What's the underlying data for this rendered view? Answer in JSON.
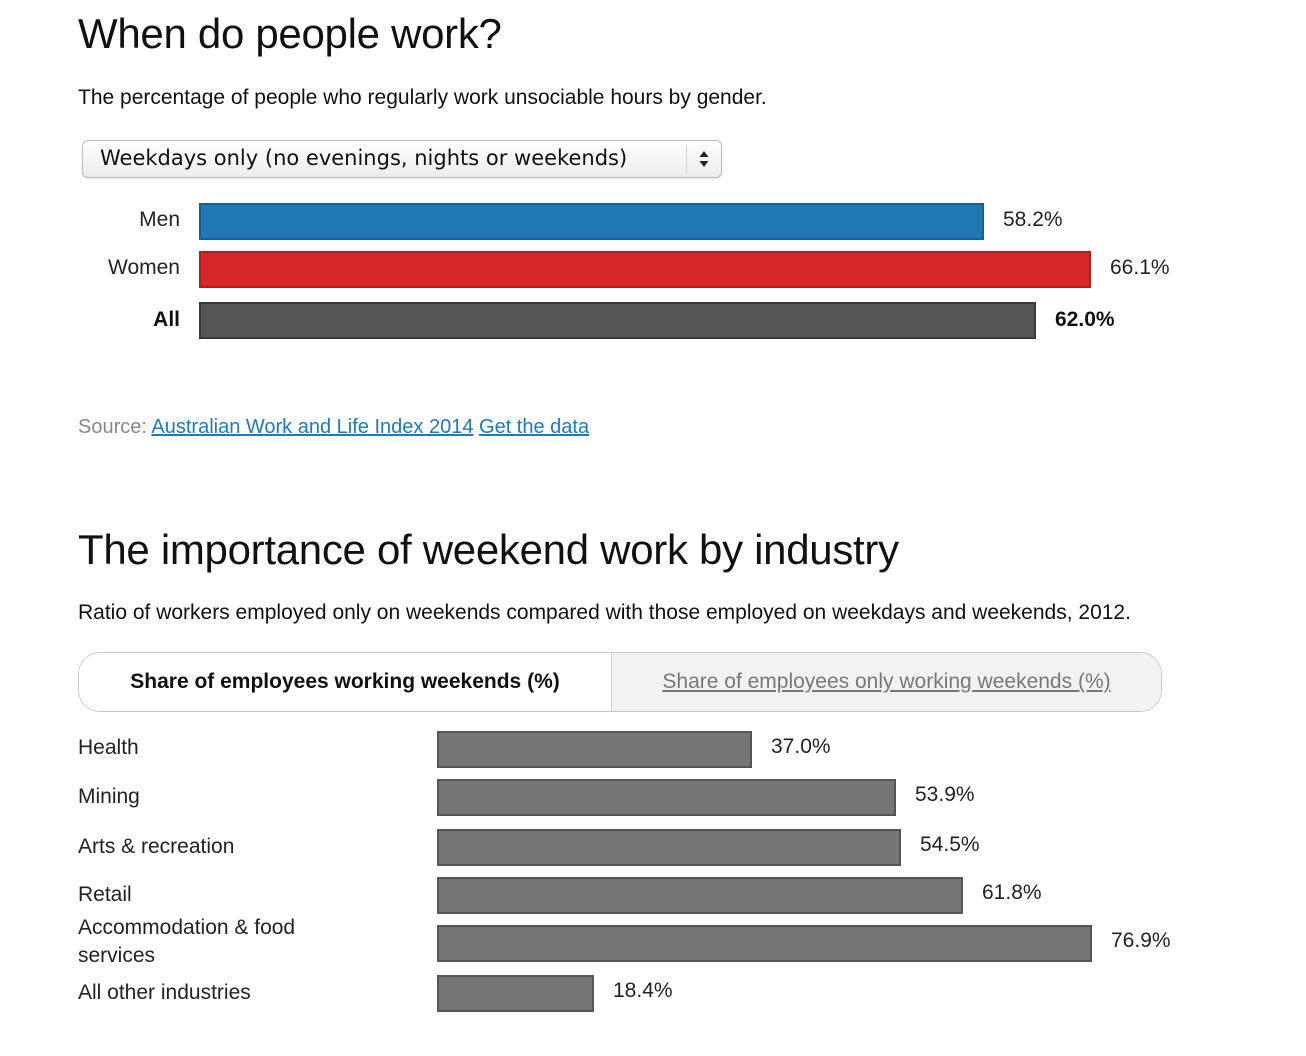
{
  "section1": {
    "title": "When do people work?",
    "subtitle": "The percentage of people who regularly work unsociable hours by gender.",
    "dropdown": {
      "selected": "Weekdays only (no evenings, nights or weekends)",
      "icon": "up-down-arrows-icon"
    },
    "source_label": "Source:",
    "source_link": "Australian Work and Life Index 2014",
    "data_link": "Get the data"
  },
  "section2": {
    "title": "The importance of weekend work by industry",
    "subtitle": "Ratio of workers employed only on weekends compared with those employed on weekdays and weekends, 2012.",
    "tabs": [
      {
        "label": "Share of employees working weekends (%)",
        "active": true
      },
      {
        "label": "Share of employees only working weekends (%)",
        "active": false
      }
    ]
  },
  "colors": {
    "men": "#1f77b4",
    "women": "#d62728",
    "all": "#555555",
    "industry": "#767676",
    "link": "#1a7bc0"
  },
  "chart_data": [
    {
      "type": "bar",
      "orientation": "horizontal",
      "categories": [
        "Men",
        "Women",
        "All"
      ],
      "values": [
        58.2,
        66.1,
        62.0
      ],
      "value_labels": [
        "58.2%",
        "66.1%",
        "62.0%"
      ],
      "colors": [
        "#1f77b4",
        "#d62728",
        "#555555"
      ],
      "xlim": [
        0,
        80
      ]
    },
    {
      "type": "bar",
      "orientation": "horizontal",
      "categories": [
        "Health",
        "Mining",
        "Arts & recreation",
        "Retail",
        "Accommodation & food services",
        "All other industries"
      ],
      "values": [
        37.0,
        53.9,
        54.5,
        61.8,
        76.9,
        18.4
      ],
      "value_labels": [
        "37.0%",
        "53.9%",
        "54.5%",
        "61.8%",
        "76.9%",
        "18.4%"
      ],
      "xlim": [
        0,
        76.9
      ]
    }
  ]
}
